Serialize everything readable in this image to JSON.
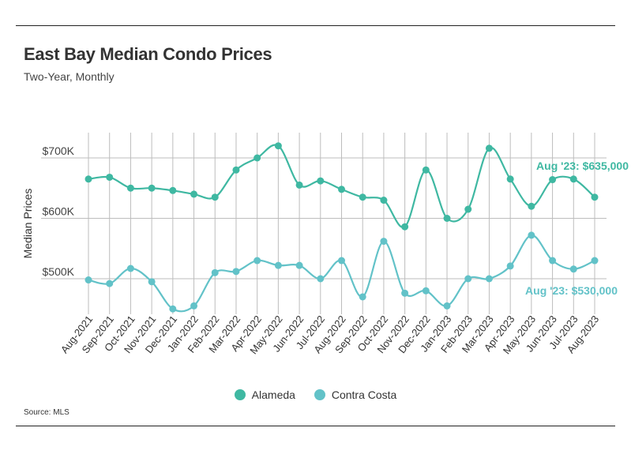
{
  "title": "East Bay Median Condo Prices",
  "subtitle": "Two-Year, Monthly",
  "source": "Source: MLS",
  "chart_data": {
    "type": "line",
    "title": "East Bay Median Condo Prices",
    "subtitle": "Two-Year, Monthly",
    "xlabel": "",
    "ylabel": "Median Prices",
    "ylim": [
      445000,
      730000
    ],
    "yticks": [
      500000,
      600000,
      700000
    ],
    "ytick_labels": [
      "$500K",
      "$600K",
      "$700K"
    ],
    "grid": true,
    "categories": [
      "Aug-2021",
      "Sep-2021",
      "Oct-2021",
      "Nov-2021",
      "Dec-2021",
      "Jan-2022",
      "Feb-2022",
      "Mar-2022",
      "Apr-2022",
      "May-2022",
      "Jun-2022",
      "Jul-2022",
      "Aug-2022",
      "Sep-2022",
      "Oct-2022",
      "Nov-2022",
      "Dec-2022",
      "Jan-2023",
      "Feb-2023",
      "Mar-2023",
      "Apr-2023",
      "May-2023",
      "Jun-2023",
      "Jul-2023",
      "Aug-2023"
    ],
    "series": [
      {
        "name": "Alameda",
        "color": "#3fb8a2",
        "values": [
          665000,
          668000,
          650000,
          650000,
          646000,
          640000,
          635000,
          680000,
          700000,
          720000,
          655000,
          662000,
          648000,
          635000,
          630000,
          586000,
          680000,
          600000,
          615000,
          716000,
          665000,
          620000,
          664000,
          665000,
          635000
        ]
      },
      {
        "name": "Contra Costa",
        "color": "#62c2c8",
        "values": [
          498000,
          492000,
          517000,
          495000,
          450000,
          455000,
          510000,
          512000,
          530000,
          522000,
          522000,
          500000,
          530000,
          470000,
          562000,
          476000,
          480000,
          455000,
          500000,
          500000,
          521000,
          572000,
          530000,
          516000,
          530000
        ]
      }
    ],
    "annotations": [
      {
        "series": "Alameda",
        "text": "Aug '23: $635,000"
      },
      {
        "series": "Contra Costa",
        "text": "Aug '23: $530,000"
      }
    ],
    "legend": "bottom-center"
  }
}
